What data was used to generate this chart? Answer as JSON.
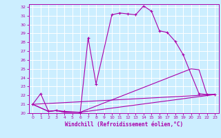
{
  "xlabel": "Windchill (Refroidissement éolien,°C)",
  "xlim": [
    -0.5,
    23.5
  ],
  "ylim": [
    20,
    32.3
  ],
  "yticks": [
    20,
    21,
    22,
    23,
    24,
    25,
    26,
    27,
    28,
    29,
    30,
    31,
    32
  ],
  "xticks": [
    0,
    1,
    2,
    3,
    4,
    5,
    6,
    7,
    8,
    9,
    10,
    11,
    12,
    13,
    14,
    15,
    16,
    17,
    18,
    19,
    20,
    21,
    22,
    23
  ],
  "background_color": "#cceeff",
  "line_color": "#aa00aa",
  "grid_color": "#ffffff",
  "line1_x": [
    0,
    1,
    2,
    3,
    4,
    6,
    7,
    8,
    10,
    11,
    12,
    13,
    14,
    15,
    16,
    17,
    18,
    19,
    21,
    22,
    23
  ],
  "line1_y": [
    21.0,
    22.2,
    20.2,
    20.3,
    20.2,
    20.1,
    28.5,
    23.3,
    31.1,
    31.3,
    31.2,
    31.1,
    32.1,
    31.5,
    29.3,
    29.1,
    28.1,
    26.6,
    22.2,
    22.1,
    22.1
  ],
  "line2_x": [
    0,
    2,
    3,
    4,
    6,
    20,
    21,
    22,
    23
  ],
  "line2_y": [
    21.0,
    20.2,
    20.3,
    20.1,
    20.1,
    25.0,
    24.9,
    22.1,
    22.1
  ],
  "line3_x": [
    0,
    2,
    3,
    4,
    6,
    23
  ],
  "line3_y": [
    21.0,
    20.2,
    20.3,
    20.1,
    20.1,
    22.1
  ],
  "line4_x": [
    0,
    23
  ],
  "line4_y": [
    21.0,
    22.1
  ]
}
